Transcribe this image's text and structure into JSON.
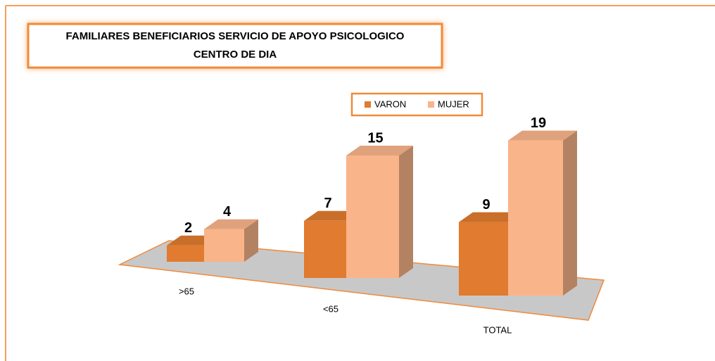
{
  "chart_data": {
    "type": "bar3d",
    "title": [
      "FAMILIARES  BENEFICIARIOS SERVICIO DE APOYO PSICOLOGICO",
      "CENTRO DE DIA"
    ],
    "categories": [
      ">65",
      "<65",
      "TOTAL"
    ],
    "series": [
      {
        "name": "VARON",
        "color": "#e07b2f",
        "values": [
          2,
          7,
          9
        ]
      },
      {
        "name": "MUJER",
        "color": "#f9b48a",
        "values": [
          4,
          15,
          19
        ]
      }
    ],
    "legend": "top"
  }
}
